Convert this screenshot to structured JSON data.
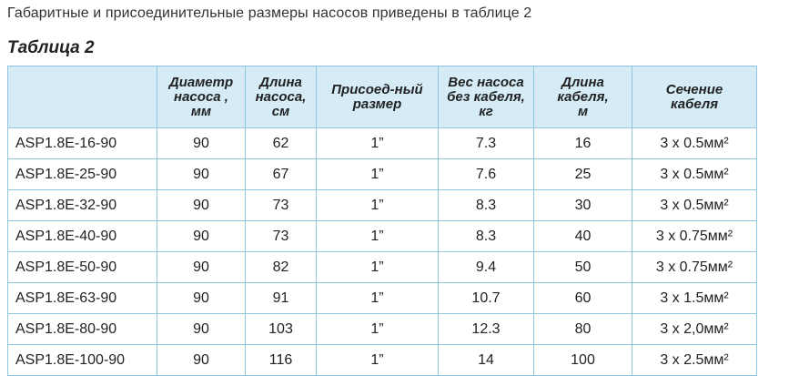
{
  "intro": "Габаритные и присоединительные размеры насосов приведены в таблице 2",
  "table_title": "Таблица 2",
  "headers": [
    [],
    [
      "Диаметр",
      "насоса ,",
      "мм"
    ],
    [
      "Длина",
      "насоса,",
      "см"
    ],
    [
      "Присоед-ный",
      "размер"
    ],
    [
      "Вес насоса",
      "без кабеля,",
      "кг"
    ],
    [
      "Длина",
      "кабеля,",
      "м"
    ],
    [
      "Сечение",
      "кабеля"
    ]
  ],
  "rows": [
    [
      "ASP1.8E-16-90",
      "90",
      "62",
      "1”",
      "7.3",
      "16",
      "3 x 0.5мм²"
    ],
    [
      "ASP1.8E-25-90",
      "90",
      "67",
      "1”",
      "7.6",
      "25",
      "3 x 0.5мм²"
    ],
    [
      "ASP1.8E-32-90",
      "90",
      "73",
      "1”",
      "8.3",
      "30",
      "3 x 0.5мм²"
    ],
    [
      "ASP1.8E-40-90",
      "90",
      "73",
      "1”",
      "8.3",
      "40",
      "3 x 0.75мм²"
    ],
    [
      "ASP1.8E-50-90",
      "90",
      "82",
      "1”",
      "9.4",
      "50",
      "3 x 0.75мм²"
    ],
    [
      "ASP1.8E-63-90",
      "90",
      "91",
      "1”",
      "10.7",
      "60",
      "3 x 1.5мм²"
    ],
    [
      "ASP1.8E-80-90",
      "90",
      "103",
      "1”",
      "12.3",
      "80",
      "3 x 2,0мм²"
    ],
    [
      "ASP1.8E-100-90",
      "90",
      "116",
      "1”",
      "14",
      "100",
      "3 x 2.5мм²"
    ]
  ],
  "colors": {
    "header_bg": "#d5ecf6",
    "border": "#8fc6df"
  }
}
